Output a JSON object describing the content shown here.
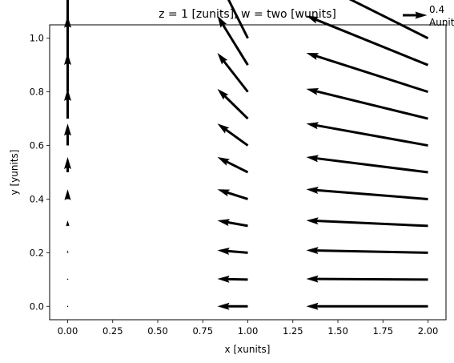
{
  "chart_data": {
    "type": "quiver",
    "title": "z = 1 [zunits], w = two [wunits]",
    "xlabel": "x [xunits]",
    "ylabel": "y [yunits]",
    "xlim": [
      -0.1,
      2.1
    ],
    "ylim": [
      -0.05,
      1.05
    ],
    "xticks": [
      "0.00",
      "0.25",
      "0.50",
      "0.75",
      "1.00",
      "1.25",
      "1.50",
      "1.75",
      "2.00"
    ],
    "yticks": [
      "0.0",
      "0.2",
      "0.4",
      "0.6",
      "0.8",
      "1.0"
    ],
    "grid": false,
    "quiver_key": {
      "value": 0.4,
      "label": "0.4\nAunit",
      "position": "top-right, outside axes"
    },
    "arrow_color": "#000000",
    "vectors": [
      {
        "x": 0,
        "y": 0.0,
        "u": 0.0,
        "v": 0.0
      },
      {
        "x": 0,
        "y": 0.1,
        "u": 0.0,
        "v": 0.01
      },
      {
        "x": 0,
        "y": 0.2,
        "u": 0.0,
        "v": 0.04
      },
      {
        "x": 0,
        "y": 0.3,
        "u": 0.0,
        "v": 0.09
      },
      {
        "x": 0,
        "y": 0.4,
        "u": 0.0,
        "v": 0.16
      },
      {
        "x": 0,
        "y": 0.5,
        "u": 0.0,
        "v": 0.25
      },
      {
        "x": 0,
        "y": 0.6,
        "u": 0.0,
        "v": 0.36
      },
      {
        "x": 0,
        "y": 0.7,
        "u": 0.0,
        "v": 0.49
      },
      {
        "x": 0,
        "y": 0.8,
        "u": 0.0,
        "v": 0.64
      },
      {
        "x": 0,
        "y": 0.9,
        "u": 0.0,
        "v": 0.81
      },
      {
        "x": 0,
        "y": 1.0,
        "u": 0.0,
        "v": 1.0
      },
      {
        "x": 1,
        "y": 0.0,
        "u": -0.5,
        "v": 0.0
      },
      {
        "x": 1,
        "y": 0.1,
        "u": -0.5,
        "v": 0.01
      },
      {
        "x": 1,
        "y": 0.2,
        "u": -0.5,
        "v": 0.04
      },
      {
        "x": 1,
        "y": 0.3,
        "u": -0.5,
        "v": 0.09
      },
      {
        "x": 1,
        "y": 0.4,
        "u": -0.5,
        "v": 0.16
      },
      {
        "x": 1,
        "y": 0.5,
        "u": -0.5,
        "v": 0.25
      },
      {
        "x": 1,
        "y": 0.6,
        "u": -0.5,
        "v": 0.36
      },
      {
        "x": 1,
        "y": 0.7,
        "u": -0.5,
        "v": 0.49
      },
      {
        "x": 1,
        "y": 0.8,
        "u": -0.5,
        "v": 0.64
      },
      {
        "x": 1,
        "y": 0.9,
        "u": -0.5,
        "v": 0.81
      },
      {
        "x": 1,
        "y": 1.0,
        "u": -0.5,
        "v": 1.0
      },
      {
        "x": 2,
        "y": 0.0,
        "u": -2.0,
        "v": 0.0
      },
      {
        "x": 2,
        "y": 0.1,
        "u": -2.0,
        "v": 0.01
      },
      {
        "x": 2,
        "y": 0.2,
        "u": -2.0,
        "v": 0.04
      },
      {
        "x": 2,
        "y": 0.3,
        "u": -2.0,
        "v": 0.09
      },
      {
        "x": 2,
        "y": 0.4,
        "u": -2.0,
        "v": 0.16
      },
      {
        "x": 2,
        "y": 0.5,
        "u": -2.0,
        "v": 0.25
      },
      {
        "x": 2,
        "y": 0.6,
        "u": -2.0,
        "v": 0.36
      },
      {
        "x": 2,
        "y": 0.7,
        "u": -2.0,
        "v": 0.49
      },
      {
        "x": 2,
        "y": 0.8,
        "u": -2.0,
        "v": 0.64
      },
      {
        "x": 2,
        "y": 0.9,
        "u": -2.0,
        "v": 0.81
      },
      {
        "x": 2,
        "y": 1.0,
        "u": -2.0,
        "v": 1.0
      }
    ]
  }
}
